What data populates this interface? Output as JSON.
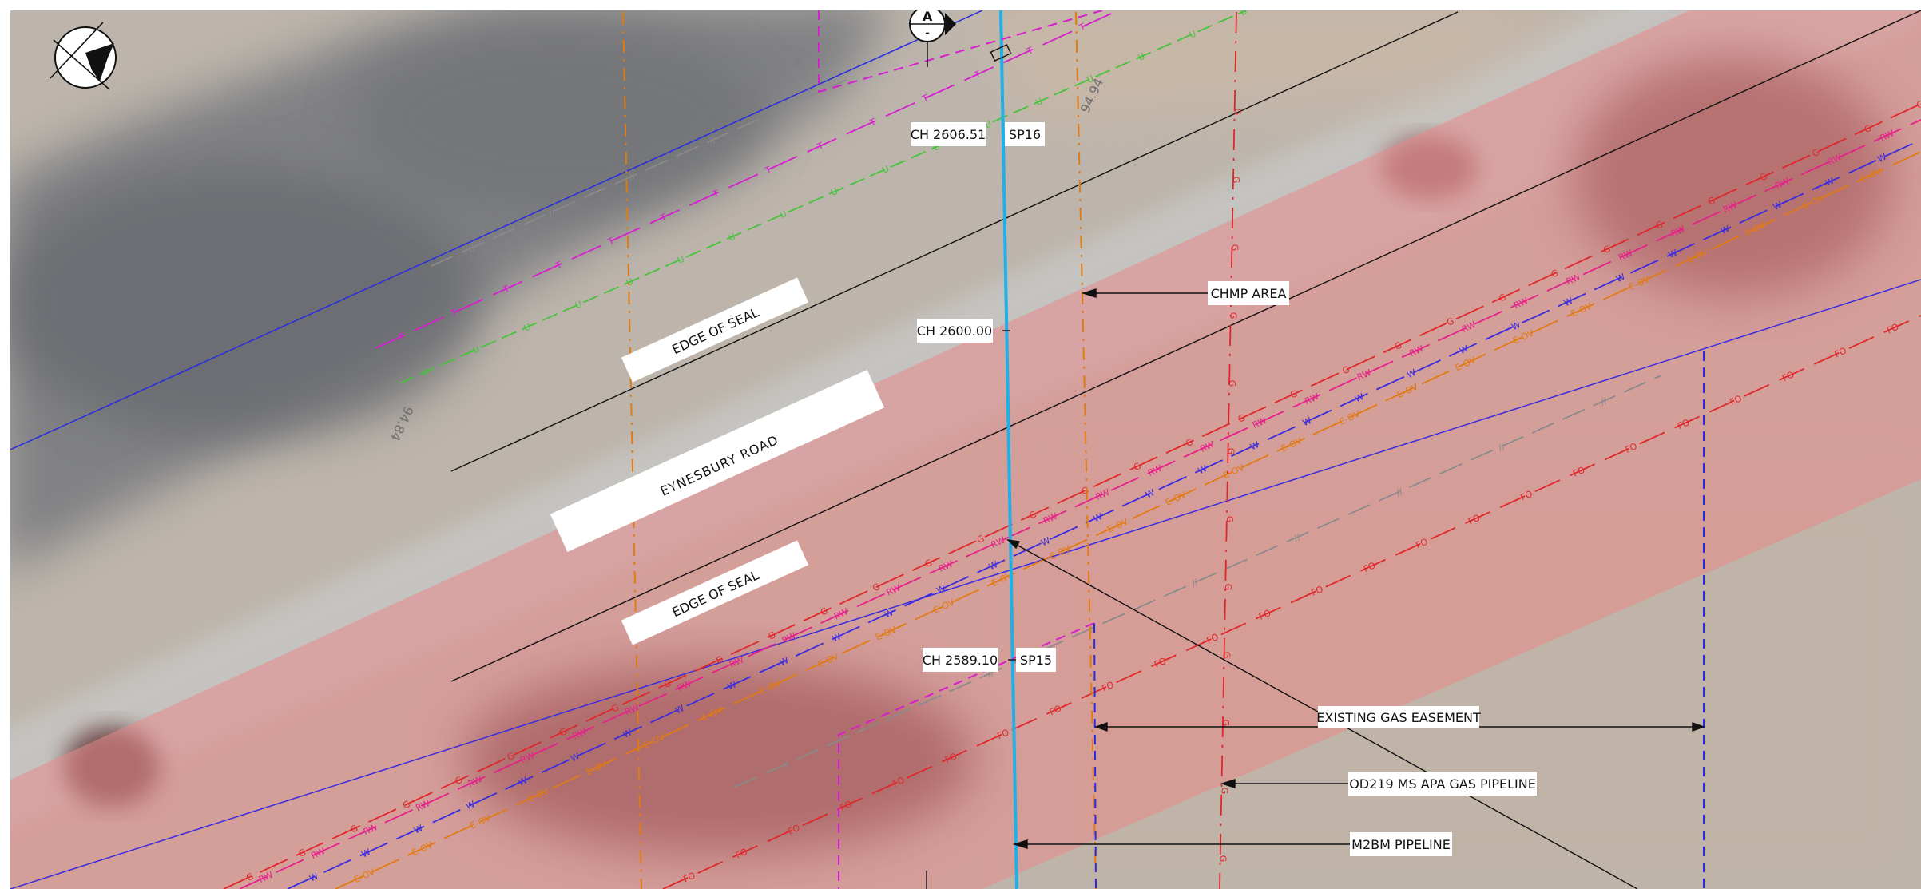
{
  "road": {
    "name": "EYNESBURY ROAD",
    "edge_top": "EDGE OF SEAL",
    "edge_bottom": "EDGE OF SEAL"
  },
  "contours": {
    "top": "94.94",
    "left": "94.84"
  },
  "chainages": [
    {
      "label": "CH 2606.51",
      "sp": "SP16"
    },
    {
      "label": "CH 2600.00",
      "sp": ""
    },
    {
      "label": "CH 2589.10",
      "sp": "SP15"
    }
  ],
  "annotations": {
    "chmp": "CHMP AREA",
    "gas_easement": "EXISTING GAS EASEMENT",
    "apa_pipeline": "OD219 MS APA GAS PIPELINE",
    "m2bm_pipeline": "M2BM PIPELINE"
  },
  "section_marker": {
    "letter": "A",
    "sub": "-"
  },
  "service_codes": {
    "telstra": "T",
    "unknown": "U",
    "gas": "G",
    "recycled_water": "RW",
    "water": "W",
    "electric": "E-OV",
    "fibre": "FO",
    "abandoned": "//"
  },
  "colors": {
    "corridor": "#e88a8a",
    "chainage_line": "#1fb0e8",
    "gas": "#e0262a",
    "recycled_water": "#e6208a",
    "water": "#3a2be0",
    "electric": "#e27a12",
    "telstra": "#d81cd0",
    "unknown": "#45c43a",
    "fibre": "#e0262a",
    "boundary": "#2a2ae0"
  },
  "icons": {
    "north_arrow": "north-arrow-icon",
    "section_marker": "section-marker-icon"
  }
}
